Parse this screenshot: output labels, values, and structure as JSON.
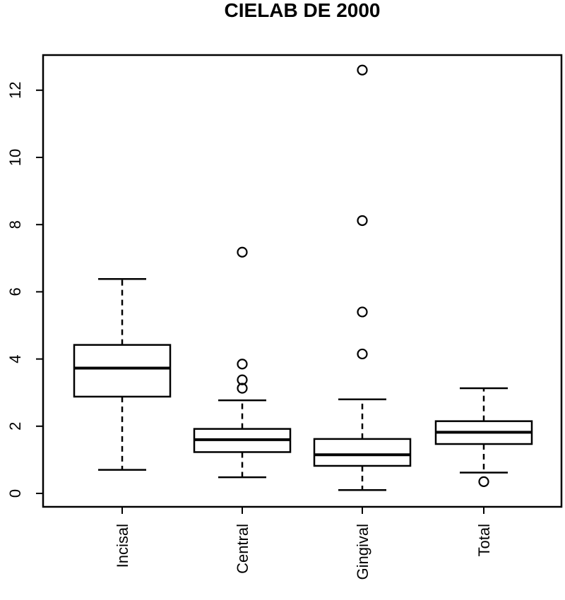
{
  "chart_data": {
    "type": "boxplot",
    "title": "CIELAB DE 2000",
    "xlabel": "",
    "ylabel": "",
    "ylim": [
      0,
      13
    ],
    "yticks": [
      0,
      2,
      4,
      6,
      8,
      10,
      12
    ],
    "grid": false,
    "categories": [
      "Incisal",
      "Central",
      "Gingival",
      "Total"
    ],
    "boxes": [
      {
        "category": "Incisal",
        "whisker_low": 0.7,
        "q1": 2.88,
        "median": 3.73,
        "q3": 4.42,
        "whisker_high": 6.38,
        "outliers": []
      },
      {
        "category": "Central",
        "whisker_low": 0.48,
        "q1": 1.23,
        "median": 1.6,
        "q3": 1.92,
        "whisker_high": 2.77,
        "outliers": [
          3.13,
          3.38,
          3.85,
          7.18
        ]
      },
      {
        "category": "Gingival",
        "whisker_low": 0.1,
        "q1": 0.82,
        "median": 1.15,
        "q3": 1.62,
        "whisker_high": 2.8,
        "outliers": [
          4.15,
          5.4,
          8.12,
          12.6
        ]
      },
      {
        "category": "Total",
        "whisker_low": 0.62,
        "q1": 1.47,
        "median": 1.82,
        "q3": 2.15,
        "whisker_high": 3.13,
        "outliers": [
          0.35
        ]
      }
    ]
  }
}
